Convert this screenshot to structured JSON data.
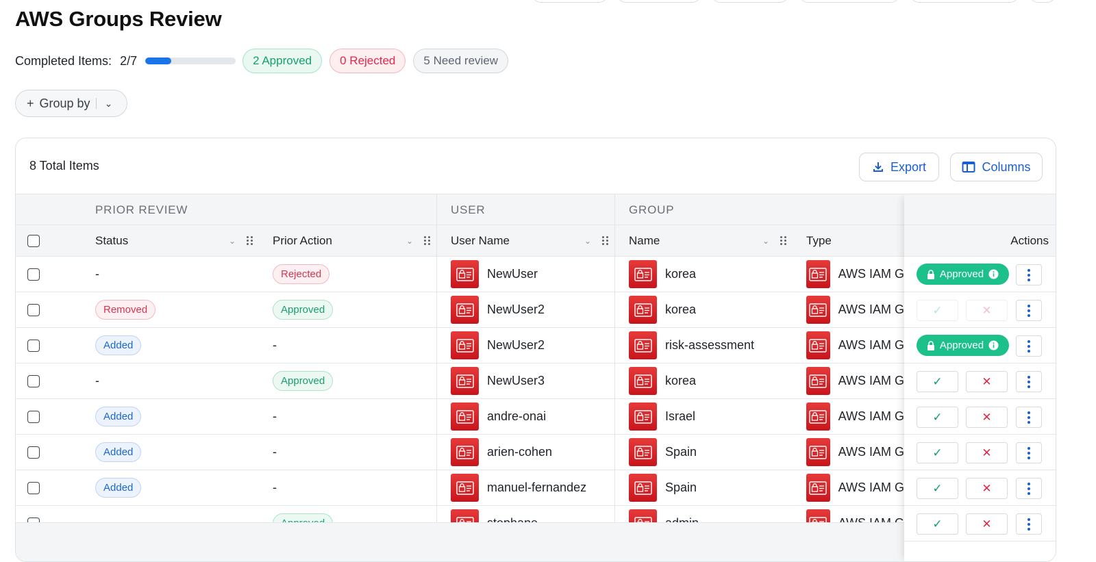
{
  "page": {
    "title": "AWS Groups Review"
  },
  "progress": {
    "label": "Completed Items:",
    "count_text": "2/7",
    "completed_fraction": 0.2857,
    "approved_pill": "2 Approved",
    "rejected_pill": "0 Rejected",
    "need_review_pill": "5 Need review"
  },
  "toolbar": {
    "group_by_label": "Group by"
  },
  "table": {
    "total_label": "8 Total Items",
    "export_label": "Export",
    "columns_label": "Columns",
    "groups": {
      "prior_review": "PRIOR REVIEW",
      "user": "USER",
      "group": "GROUP"
    },
    "headers": {
      "status": "Status",
      "prior_action": "Prior Action",
      "user_name": "User Name",
      "name": "Name",
      "type": "Type",
      "actions": "Actions"
    },
    "rows": [
      {
        "status": "-",
        "status_kind": "none",
        "prior_action": "Rejected",
        "prior_kind": "rejected",
        "user": "NewUser",
        "group": "korea",
        "type": "AWS IAM G",
        "action_state": "approved"
      },
      {
        "status": "Removed",
        "status_kind": "removed",
        "prior_action": "Approved",
        "prior_kind": "approved",
        "user": "NewUser2",
        "group": "korea",
        "type": "AWS IAM G",
        "action_state": "disabled"
      },
      {
        "status": "Added",
        "status_kind": "added",
        "prior_action": "-",
        "prior_kind": "none",
        "user": "NewUser2",
        "group": "risk-assessment",
        "type": "AWS IAM G",
        "action_state": "approved"
      },
      {
        "status": "-",
        "status_kind": "none",
        "prior_action": "Approved",
        "prior_kind": "approved",
        "user": "NewUser3",
        "group": "korea",
        "type": "AWS IAM G",
        "action_state": "pending"
      },
      {
        "status": "Added",
        "status_kind": "added",
        "prior_action": "-",
        "prior_kind": "none",
        "user": "andre-onai",
        "group": "Israel",
        "type": "AWS IAM G",
        "action_state": "pending"
      },
      {
        "status": "Added",
        "status_kind": "added",
        "prior_action": "-",
        "prior_kind": "none",
        "user": "arien-cohen",
        "group": "Spain",
        "type": "AWS IAM G",
        "action_state": "pending"
      },
      {
        "status": "Added",
        "status_kind": "added",
        "prior_action": "-",
        "prior_kind": "none",
        "user": "manuel-fernandez",
        "group": "Spain",
        "type": "AWS IAM G",
        "action_state": "pending"
      },
      {
        "status": "",
        "status_kind": "none",
        "prior_action": "Approved",
        "prior_kind": "approved",
        "user": "stephane",
        "group": "admin",
        "type": "AWS IAM G",
        "action_state": "pending"
      }
    ],
    "approved_chip_label": "Approved"
  },
  "colors": {
    "accent": "#1a73e8",
    "approved": "#1cc08a",
    "rejected": "#e0284a",
    "aws_icon": "#d81f26"
  }
}
